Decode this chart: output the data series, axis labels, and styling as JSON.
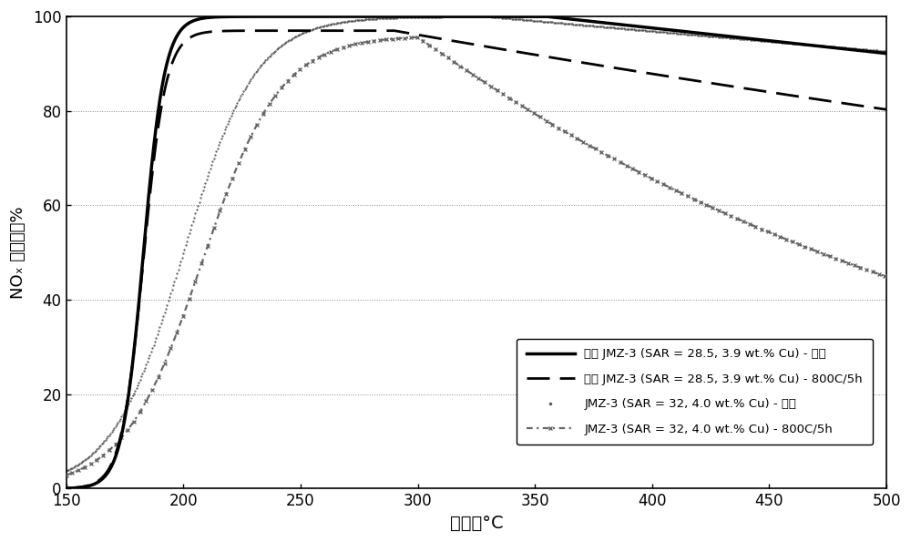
{
  "title": "",
  "xlabel": "温度，°C",
  "ylabel": "NOₓ 转化率，%",
  "xlim": [
    150,
    500
  ],
  "ylim": [
    0,
    100
  ],
  "xticks": [
    150,
    200,
    250,
    300,
    350,
    400,
    450,
    500
  ],
  "yticks": [
    0,
    20,
    40,
    60,
    80,
    100
  ],
  "legend_labels": [
    "无钠 JMZ-3 (SAR = 28.5, 3.9 wt.% Cu) - 新鲜",
    "无钠 JMZ-3 (SAR = 28.5, 3.9 wt.% Cu) - 800C/5h",
    "JMZ-3 (SAR = 32, 4.0 wt.% Cu) - 新鲜",
    "JMZ-3 (SAR = 32, 4.0 wt.% Cu) - 800C/5h"
  ],
  "background_color": "#ffffff",
  "grid_color": "#888888"
}
